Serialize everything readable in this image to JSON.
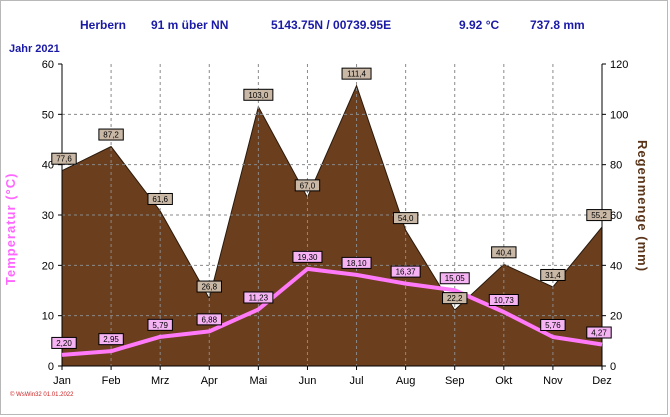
{
  "header": {
    "station": "Herbern",
    "altitude": "91 m über NN",
    "coords": "5143.75N / 00739.95E",
    "temp_avg": "9.92 °C",
    "rain_total": "737.8 mm"
  },
  "year_label": "Jahr 2021",
  "footer": "© WsWin32  01.01.2022",
  "chart_data": {
    "type": "area",
    "categories": [
      "Jan",
      "Feb",
      "Mrz",
      "Apr",
      "Mai",
      "Jun",
      "Jul",
      "Aug",
      "Sep",
      "Okt",
      "Nov",
      "Dez"
    ],
    "ylabel_left": "Temperatur  (°C)",
    "ylabel_right": "Regenmenge  (mm)",
    "ylim_left": [
      0,
      60
    ],
    "ylim_right": [
      0,
      120
    ],
    "yticks_left": [
      "0",
      "10",
      "20",
      "30",
      "40",
      "50",
      "60"
    ],
    "yticks_right": [
      "0",
      "20",
      "40",
      "60",
      "80",
      "100",
      "120"
    ],
    "grid": true,
    "series": [
      {
        "axis": "right",
        "type": "area",
        "values": [
          77.6,
          87.2,
          61.6,
          26.8,
          103.0,
          67.0,
          111.4,
          54.0,
          22.2,
          40.4,
          31.4,
          55.2
        ],
        "labels": [
          "77,6",
          "87,2",
          "61,6",
          "26,8",
          "103,0",
          "67,0",
          "111,4",
          "54,0",
          "22,2",
          "40,4",
          "31,4",
          "55,2"
        ],
        "color": "#6b3e1e"
      },
      {
        "axis": "left",
        "type": "line",
        "values": [
          2.2,
          2.95,
          5.79,
          6.88,
          11.23,
          19.3,
          18.1,
          16.37,
          15.05,
          10.73,
          5.76,
          4.27
        ],
        "labels": [
          "2,20",
          "2,95",
          "5,79",
          "6,88",
          "11,23",
          "19,30",
          "18,10",
          "16,37",
          "15,05",
          "10,73",
          "5,76",
          "4,27"
        ],
        "color": "#ff7af8"
      }
    ]
  },
  "colors": {
    "header_text": "#1a1aa6",
    "temp_line": "#ff7af8",
    "rain_fill": "#6b3e1e"
  }
}
